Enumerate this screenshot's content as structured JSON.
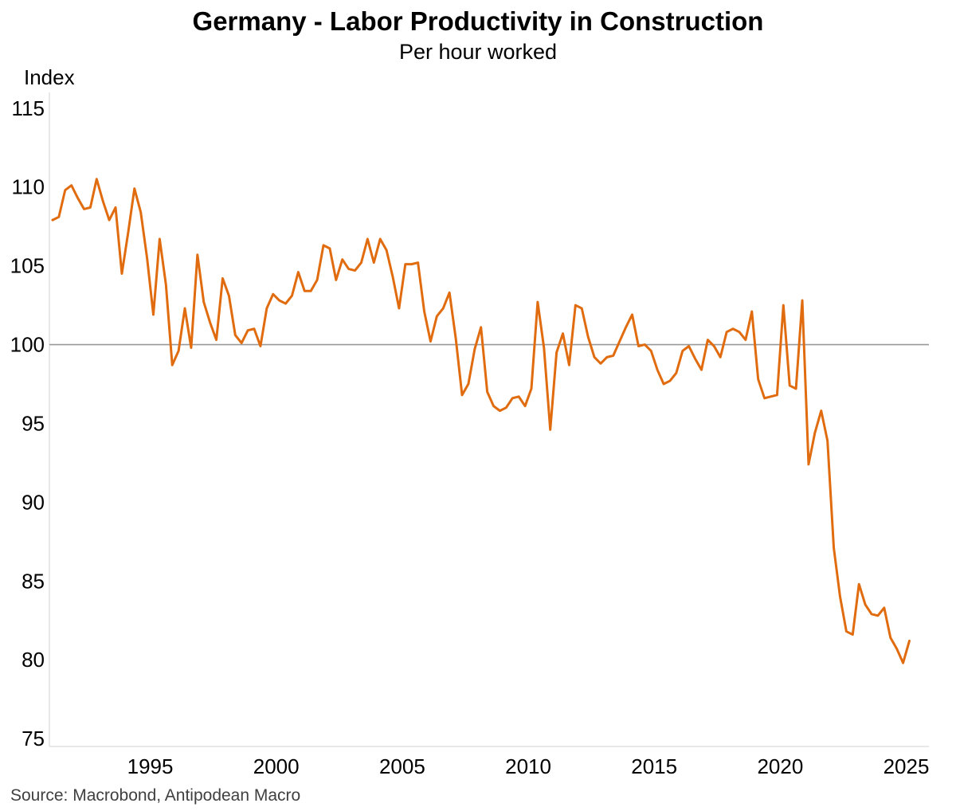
{
  "chart_data": {
    "type": "line",
    "title": "Germany - Labor Productivity in Construction",
    "subtitle": "Per hour worked",
    "ylabel": "Index",
    "xlabel": "",
    "source": "Source: Macrobond, Antipodean Macro",
    "xlim": [
      1991.0,
      2025.9
    ],
    "ylim": [
      74.5,
      116
    ],
    "reference_line": 100,
    "colors": {
      "series": "#E06C0F",
      "reference": "#999999",
      "axis": "#d9d9d9"
    },
    "x_ticks": [
      {
        "value": 1995,
        "label": "1995"
      },
      {
        "value": 2000,
        "label": "2000"
      },
      {
        "value": 2005,
        "label": "2005"
      },
      {
        "value": 2010,
        "label": "2010"
      },
      {
        "value": 2015,
        "label": "2015"
      },
      {
        "value": 2020,
        "label": "2020"
      },
      {
        "value": 2025,
        "label": "2025"
      }
    ],
    "y_ticks": [
      {
        "value": 115,
        "label": "115"
      },
      {
        "value": 110,
        "label": "110"
      },
      {
        "value": 105,
        "label": "105"
      },
      {
        "value": 100,
        "label": "100"
      },
      {
        "value": 95,
        "label": "95"
      },
      {
        "value": 90,
        "label": "90"
      },
      {
        "value": 85,
        "label": "85"
      },
      {
        "value": 80,
        "label": "80"
      },
      {
        "value": 75,
        "label": "75"
      }
    ],
    "series": [
      {
        "name": "Labor productivity per hour worked",
        "start": 1991.125,
        "step": 0.25,
        "values": [
          107.9,
          108.1,
          109.8,
          110.1,
          109.3,
          108.6,
          108.7,
          110.5,
          109.1,
          107.9,
          108.7,
          104.5,
          107.1,
          109.9,
          108.4,
          105.5,
          101.9,
          106.7,
          103.8,
          98.7,
          99.6,
          102.3,
          99.8,
          105.7,
          102.7,
          101.4,
          100.3,
          104.2,
          103.1,
          100.6,
          100.1,
          100.9,
          101.0,
          99.9,
          102.3,
          103.2,
          102.8,
          102.6,
          103.1,
          104.6,
          103.4,
          103.4,
          104.1,
          106.3,
          106.1,
          104.1,
          105.4,
          104.8,
          104.7,
          105.2,
          106.7,
          105.2,
          106.7,
          106.0,
          104.3,
          102.3,
          105.1,
          105.1,
          105.2,
          102.1,
          100.2,
          101.8,
          102.3,
          103.3,
          100.4,
          96.8,
          97.5,
          99.7,
          101.1,
          97.0,
          96.1,
          95.8,
          96.0,
          96.6,
          96.7,
          96.1,
          97.2,
          102.7,
          99.8,
          94.6,
          99.5,
          100.7,
          98.7,
          102.5,
          102.3,
          100.5,
          99.2,
          98.8,
          99.2,
          99.3,
          100.2,
          101.1,
          101.9,
          99.9,
          100.0,
          99.6,
          98.4,
          97.5,
          97.7,
          98.2,
          99.6,
          99.9,
          99.1,
          98.4,
          100.3,
          99.9,
          99.2,
          100.8,
          101.0,
          100.8,
          100.3,
          102.1,
          97.8,
          96.6,
          96.7,
          96.8,
          102.5,
          97.4,
          97.2,
          102.8,
          92.4,
          94.4,
          95.8,
          93.9,
          87.1,
          84.0,
          81.8,
          81.6,
          84.8,
          83.5,
          82.9,
          82.8,
          83.3,
          81.4,
          80.7,
          79.8,
          81.2
        ]
      }
    ]
  }
}
